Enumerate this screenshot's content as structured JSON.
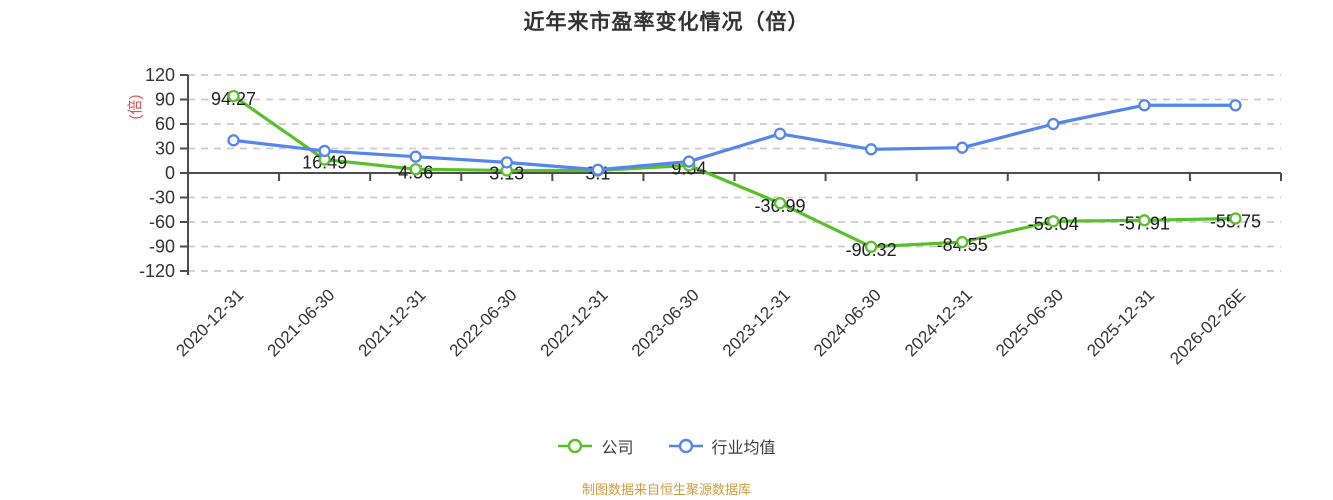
{
  "title": "近年来市盈率变化情况（倍）",
  "y_axis": {
    "unit": "(倍)",
    "ticks": [
      120,
      90,
      60,
      30,
      0,
      -30,
      -60,
      -90,
      -120
    ],
    "min": -120,
    "max": 120
  },
  "legend": {
    "items": [
      {
        "key": "company",
        "label": "公司",
        "color": "#58c029"
      },
      {
        "key": "industry",
        "label": "行业均值",
        "color": "#5586ec"
      }
    ]
  },
  "footer": "制图数据来自恒生聚源数据库",
  "colors": {
    "company": "#58c029",
    "industry": "#5586ec",
    "unit_label": "#e25352",
    "footer_text": "#d29b3e",
    "title_text": "#333333",
    "axis_line": "#4d4d4d",
    "axis_text": "#333333",
    "grid": "#cccccc",
    "data_label": "#1f1f1f"
  },
  "chart_data": {
    "type": "line",
    "title": "近年来市盈率变化情况（倍）",
    "categories": [
      "2020-12-31",
      "2021-06-30",
      "2021-12-31",
      "2022-06-30",
      "2022-12-31",
      "2023-06-30",
      "2023-12-31",
      "2024-06-30",
      "2024-12-31",
      "2025-06-30",
      "2025-12-31",
      "2026-02-26E"
    ],
    "series": [
      {
        "key": "company",
        "name": "公司",
        "color": "#58c029",
        "values": [
          94.27,
          16.49,
          4.56,
          3.13,
          3.1,
          9.34,
          -36.99,
          -90.32,
          -84.55,
          -59.04,
          -57.91,
          -55.75
        ],
        "labels_shown": true
      },
      {
        "key": "industry",
        "name": "行业均值",
        "color": "#5586ec",
        "values": [
          40,
          27,
          20,
          13,
          4,
          14,
          48,
          29,
          31,
          60,
          83,
          83
        ],
        "labels_shown": false
      }
    ],
    "ylabel": "(倍)",
    "xlabel": "",
    "ylim": [
      -120,
      120
    ],
    "y_ticks": [
      120,
      90,
      60,
      30,
      0,
      -30,
      -60,
      -90,
      -120
    ],
    "grid": true,
    "legend_position": "bottom"
  }
}
